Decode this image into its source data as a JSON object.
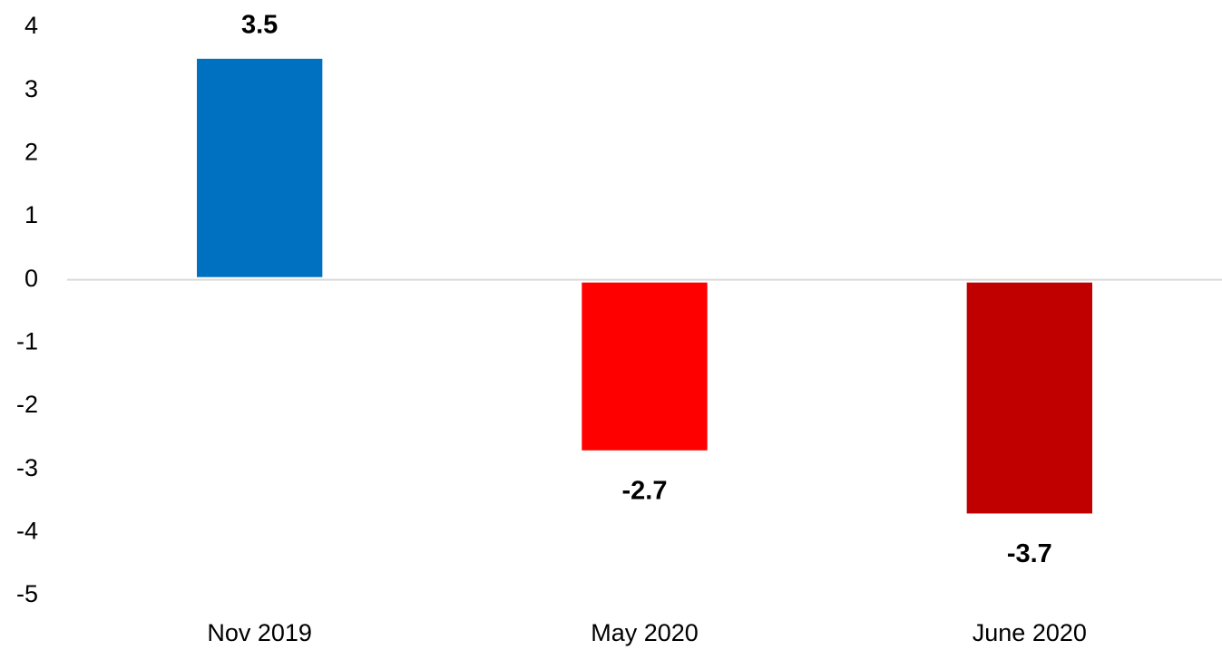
{
  "chart_data": {
    "type": "bar",
    "categories": [
      "Nov 2019",
      "May 2020",
      "June 2020"
    ],
    "values": [
      3.5,
      -2.7,
      -3.7
    ],
    "colors": [
      "#0070c0",
      "#ff0000",
      "#c00000"
    ],
    "ylim": [
      -5,
      4
    ],
    "yticks": [
      -5,
      -4,
      -3,
      -2,
      -1,
      0,
      1,
      2,
      3,
      4
    ],
    "grid": false
  }
}
